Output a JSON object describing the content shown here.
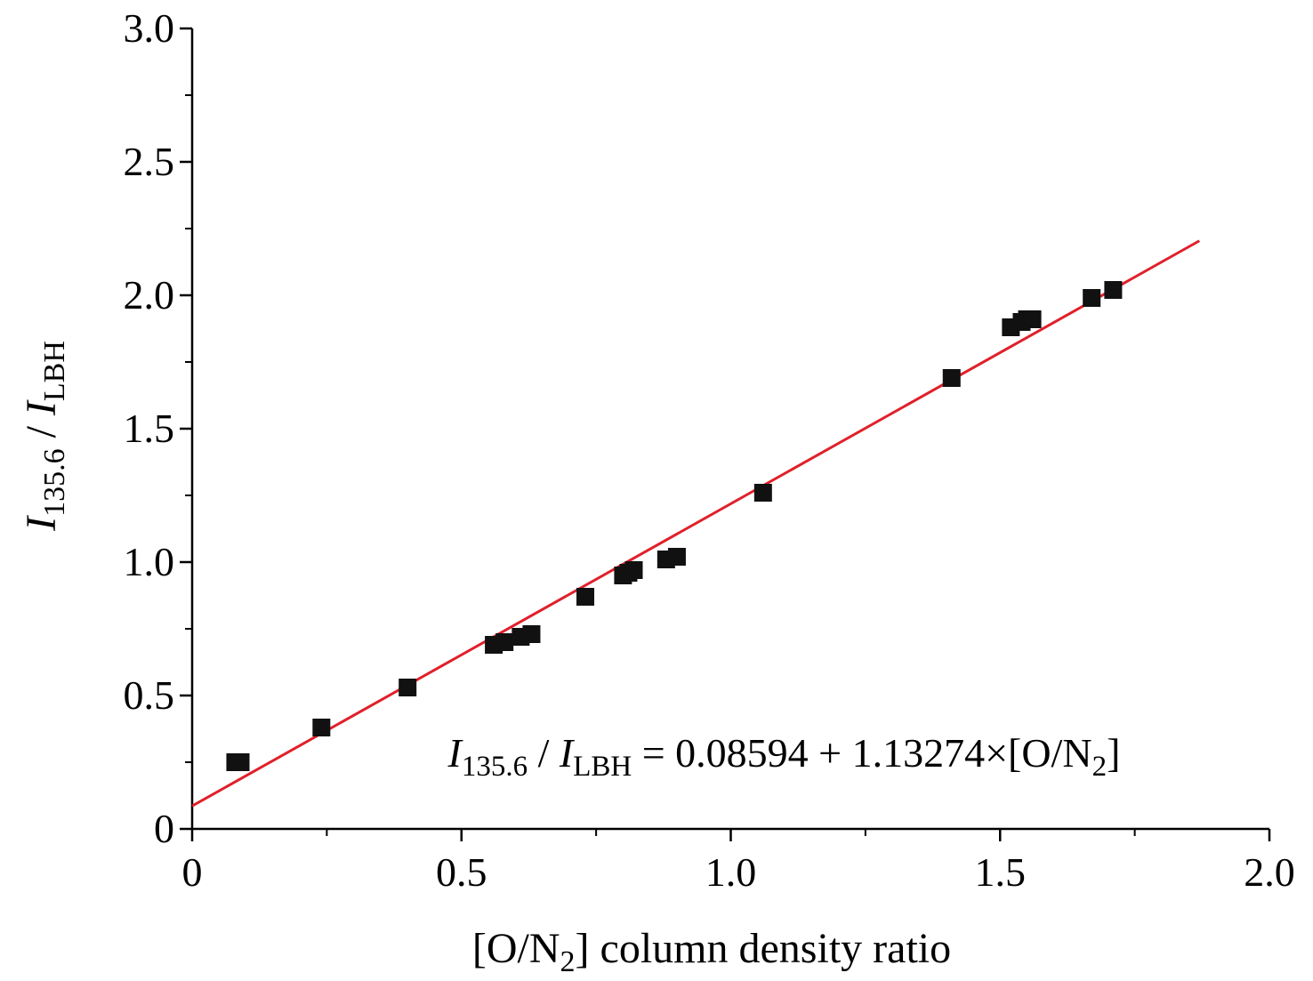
{
  "chart_data": {
    "type": "scatter",
    "title": "",
    "xlabel": {
      "pre": "[O/N",
      "sub": "2",
      "post": "] column density ratio"
    },
    "ylabel": {
      "num_symbol": "I",
      "num_sub": "135.6",
      "sep": " / ",
      "den_symbol": "I",
      "den_sub": "LBH"
    },
    "xlim": [
      0,
      2.0
    ],
    "ylim": [
      0,
      3.0
    ],
    "x_ticks": [
      {
        "value": 0,
        "label": "0"
      },
      {
        "value": 0.5,
        "label": "0.5"
      },
      {
        "value": 1.0,
        "label": "1.0"
      },
      {
        "value": 1.5,
        "label": "1.5"
      },
      {
        "value": 2.0,
        "label": "2.0"
      }
    ],
    "x_minor_ticks": [
      0.25,
      0.75,
      1.25,
      1.75
    ],
    "y_ticks": [
      {
        "value": 0,
        "label": "0"
      },
      {
        "value": 0.5,
        "label": "0.5"
      },
      {
        "value": 1.0,
        "label": "1.0"
      },
      {
        "value": 1.5,
        "label": "1.5"
      },
      {
        "value": 2.0,
        "label": "2.0"
      },
      {
        "value": 2.5,
        "label": "2.5"
      },
      {
        "value": 3.0,
        "label": "3.0"
      }
    ],
    "y_minor_ticks": [
      0.25,
      0.75,
      1.25,
      1.75,
      2.25,
      2.75
    ],
    "grid": false,
    "series": [
      {
        "type": "scatter",
        "marker": "square",
        "color": "#111111",
        "points": [
          {
            "x": 0.08,
            "y": 0.25
          },
          {
            "x": 0.09,
            "y": 0.25
          },
          {
            "x": 0.24,
            "y": 0.38
          },
          {
            "x": 0.4,
            "y": 0.53
          },
          {
            "x": 0.56,
            "y": 0.69
          },
          {
            "x": 0.58,
            "y": 0.7
          },
          {
            "x": 0.61,
            "y": 0.72
          },
          {
            "x": 0.63,
            "y": 0.73
          },
          {
            "x": 0.73,
            "y": 0.87
          },
          {
            "x": 0.8,
            "y": 0.95
          },
          {
            "x": 0.81,
            "y": 0.96
          },
          {
            "x": 0.82,
            "y": 0.97
          },
          {
            "x": 0.88,
            "y": 1.01
          },
          {
            "x": 0.9,
            "y": 1.02
          },
          {
            "x": 1.06,
            "y": 1.26
          },
          {
            "x": 1.41,
            "y": 1.69
          },
          {
            "x": 1.52,
            "y": 1.88
          },
          {
            "x": 1.54,
            "y": 1.9
          },
          {
            "x": 1.55,
            "y": 1.91
          },
          {
            "x": 1.56,
            "y": 1.91
          },
          {
            "x": 1.67,
            "y": 1.99
          },
          {
            "x": 1.71,
            "y": 2.02
          }
        ]
      },
      {
        "type": "line",
        "color": "#e0202a",
        "intercept": 0.08594,
        "slope": 1.13274,
        "x_range": [
          0,
          1.87
        ]
      }
    ],
    "annotations": [
      {
        "num_symbol": "I",
        "num_sub": "135.6",
        "sep": " / ",
        "den_symbol": "I",
        "den_sub": "LBH",
        "eq_text": " = 0.08594 + 1.13274×[O/N",
        "eq_sub": "2",
        "eq_end": "]"
      }
    ]
  }
}
